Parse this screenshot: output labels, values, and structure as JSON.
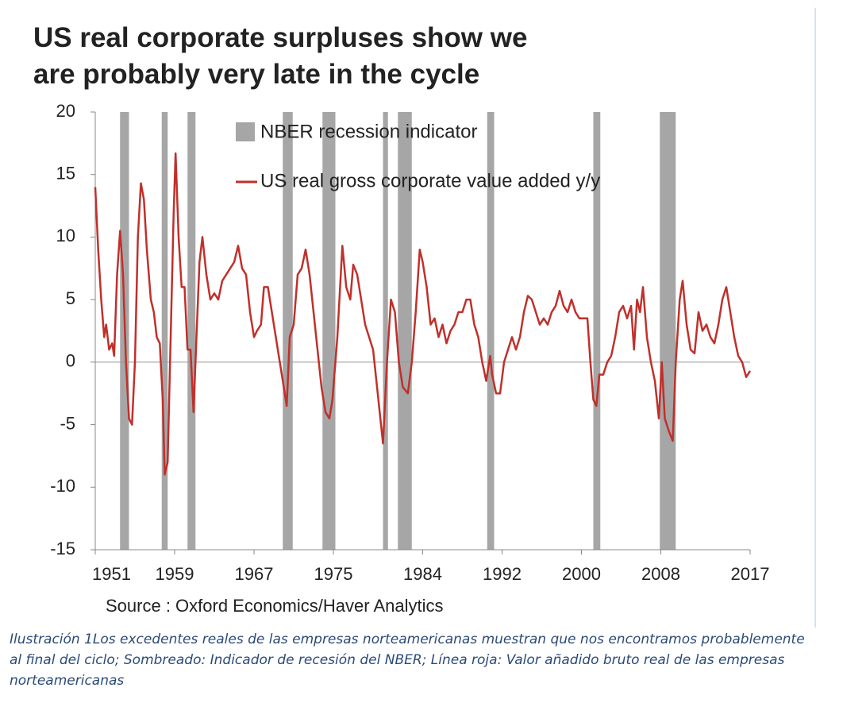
{
  "chart_data": {
    "type": "line",
    "title": "US real corporate surpluses show we are probably very late in the cycle",
    "source": "Source : Oxford Economics/Haver Analytics",
    "caption": "Ilustración 1Los excedentes reales de las empresas norteamericanas muestran que nos encontramos probablemente al final del ciclo; Sombreado: Indicador de recesión del NBER; Línea roja: Valor añadido bruto real de las empresas norteamericanas",
    "recession": {
      "name": "NBER recession indicator",
      "color": "#a6a6a6",
      "periods": [
        [
          1953.5,
          1954.4
        ],
        [
          1957.7,
          1958.3
        ],
        [
          1960.3,
          1961.1
        ],
        [
          1969.9,
          1970.9
        ],
        [
          1973.9,
          1975.2
        ],
        [
          1980.0,
          1980.5
        ],
        [
          1981.5,
          1982.9
        ],
        [
          1990.5,
          1991.2
        ],
        [
          2001.2,
          2001.9
        ],
        [
          2007.9,
          2009.5
        ]
      ]
    },
    "x": [
      1951.0,
      1951.3,
      1951.6,
      1951.9,
      1952.1,
      1952.4,
      1952.7,
      1952.9,
      1953.2,
      1953.5,
      1953.8,
      1954.1,
      1954.4,
      1954.7,
      1955.0,
      1955.3,
      1955.6,
      1955.9,
      1956.2,
      1956.6,
      1956.9,
      1957.2,
      1957.5,
      1957.8,
      1958.0,
      1958.3,
      1958.6,
      1958.9,
      1959.1,
      1959.4,
      1959.7,
      1960.0,
      1960.3,
      1960.6,
      1960.9,
      1961.2,
      1961.5,
      1961.8,
      1962.2,
      1962.6,
      1963.0,
      1963.4,
      1963.8,
      1964.2,
      1964.6,
      1965.0,
      1965.4,
      1965.8,
      1966.2,
      1966.6,
      1967.0,
      1967.3,
      1967.7,
      1968.0,
      1968.4,
      1968.8,
      1969.2,
      1969.6,
      1970.0,
      1970.3,
      1970.6,
      1971.0,
      1971.4,
      1971.8,
      1972.2,
      1972.6,
      1973.0,
      1973.4,
      1973.8,
      1974.2,
      1974.6,
      1974.9,
      1975.4,
      1975.9,
      1976.3,
      1976.7,
      1977.0,
      1977.4,
      1977.8,
      1978.2,
      1978.6,
      1979.0,
      1979.4,
      1979.8,
      1980.0,
      1980.4,
      1980.8,
      1981.2,
      1981.6,
      1982.0,
      1982.5,
      1982.9,
      1983.3,
      1983.7,
      1984.0,
      1984.4,
      1984.8,
      1985.2,
      1985.6,
      1986.0,
      1986.4,
      1986.8,
      1987.2,
      1987.6,
      1988.0,
      1988.4,
      1988.8,
      1989.2,
      1989.6,
      1990.0,
      1990.4,
      1990.8,
      1991.0,
      1991.4,
      1991.8,
      1992.2,
      1992.6,
      1993.0,
      1993.4,
      1993.8,
      1994.2,
      1994.6,
      1995.0,
      1995.4,
      1995.8,
      1996.2,
      1996.6,
      1997.0,
      1997.4,
      1997.8,
      1998.2,
      1998.6,
      1999.0,
      1999.4,
      1999.8,
      2000.2,
      2000.6,
      2000.9,
      2001.2,
      2001.5,
      2001.8,
      2002.2,
      2002.6,
      2003.0,
      2003.4,
      2003.8,
      2004.2,
      2004.6,
      2005.0,
      2005.3,
      2005.6,
      2005.9,
      2006.2,
      2006.6,
      2007.0,
      2007.4,
      2007.8,
      2008.1,
      2008.4,
      2008.8,
      2009.2,
      2009.5,
      2009.9,
      2010.2,
      2010.6,
      2011.0,
      2011.4,
      2011.8,
      2012.2,
      2012.6,
      2013.0,
      2013.4,
      2013.8,
      2014.2,
      2014.6,
      2015.0,
      2015.4,
      2015.8,
      2016.2,
      2016.6,
      2017.0
    ],
    "series": [
      {
        "name": "US real gross corporate value added y/y",
        "color": "#c0302b",
        "values": [
          14,
          9,
          5,
          2,
          3,
          1,
          1.5,
          0.5,
          7,
          10.5,
          7,
          0,
          -4.5,
          -5,
          0,
          10,
          14.3,
          13,
          9,
          5,
          4,
          2,
          1.5,
          -3,
          -9,
          -8,
          2,
          12,
          16.7,
          10,
          6,
          6,
          1,
          1,
          -4,
          2,
          8,
          10,
          7,
          5,
          5.5,
          5,
          6.5,
          7,
          7.5,
          8,
          9.3,
          7.5,
          7,
          4,
          2,
          2.5,
          3,
          6,
          6,
          4,
          2,
          0,
          -2,
          -3.5,
          2,
          3,
          7,
          7.5,
          9,
          7,
          4,
          1,
          -2,
          -4,
          -4.5,
          -3,
          2,
          9.3,
          6,
          5,
          7.8,
          7,
          5,
          3,
          2,
          1,
          -2,
          -5,
          -6.5,
          0,
          5,
          4,
          0,
          -2,
          -2.5,
          0,
          4,
          9,
          8,
          6,
          3,
          3.5,
          2,
          3,
          1.5,
          2.5,
          3,
          4,
          4,
          5,
          5,
          3,
          2,
          0,
          -1.5,
          0.5,
          -1,
          -2.5,
          -2.5,
          0,
          1,
          2,
          1,
          2,
          4,
          5.3,
          5,
          4,
          3,
          3.5,
          3,
          4,
          4.5,
          5.7,
          4.5,
          4,
          5,
          4,
          3.5,
          3.5,
          3.5,
          0,
          -3,
          -3.5,
          -1,
          -1,
          0,
          0.5,
          2,
          4,
          4.5,
          3.5,
          4.5,
          1,
          5,
          4,
          6,
          2,
          0,
          -1.5,
          -4.5,
          0,
          -4.5,
          -5.5,
          -6.3,
          0,
          5,
          6.5,
          3,
          1,
          0.7,
          4,
          2.5,
          3,
          2,
          1.5,
          3,
          5,
          6,
          4,
          2,
          0.5,
          0,
          -1.2,
          -0.7
        ]
      }
    ],
    "xlim": [
      1951,
      2017
    ],
    "xticks": [
      1951,
      1959,
      1967,
      1975,
      1984,
      1992,
      2000,
      2008,
      2017
    ],
    "ylim": [
      -15,
      20
    ],
    "yticks": [
      -15,
      -10,
      -5,
      0,
      5,
      10,
      15,
      20
    ]
  }
}
